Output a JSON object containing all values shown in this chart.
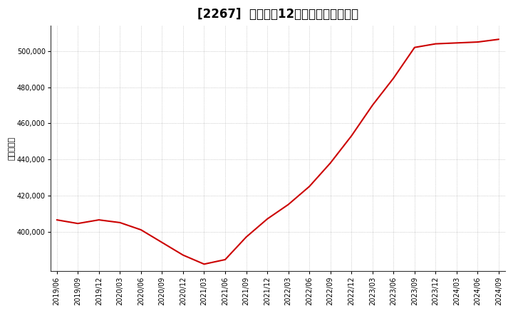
{
  "title": "[2267]  売上高の12か月移動合計の推移",
  "ylabel": "（百万円）",
  "line_color": "#cc0000",
  "background_color": "#ffffff",
  "plot_bg_color": "#ffffff",
  "grid_color": "#999999",
  "x_labels": [
    "2019/06",
    "2019/09",
    "2019/12",
    "2020/03",
    "2020/06",
    "2020/09",
    "2020/12",
    "2021/03",
    "2021/06",
    "2021/09",
    "2021/12",
    "2022/03",
    "2022/06",
    "2022/09",
    "2022/12",
    "2023/03",
    "2023/06",
    "2023/09",
    "2023/12",
    "2024/03",
    "2024/06",
    "2024/09"
  ],
  "x_values": [
    0,
    1,
    2,
    3,
    4,
    5,
    6,
    7,
    8,
    9,
    10,
    11,
    12,
    13,
    14,
    15,
    16,
    17,
    18,
    19,
    20,
    21
  ],
  "y_values": [
    406500,
    404500,
    406500,
    405000,
    401000,
    394000,
    387000,
    382000,
    384500,
    397000,
    407000,
    415000,
    425000,
    438000,
    453000,
    470000,
    485000,
    502000,
    504000,
    504500,
    505000,
    506500
  ],
  "ylim": [
    378000,
    514000
  ],
  "yticks": [
    400000,
    420000,
    440000,
    460000,
    480000,
    500000
  ],
  "title_fontsize": 12,
  "tick_fontsize": 7,
  "ylabel_fontsize": 8
}
